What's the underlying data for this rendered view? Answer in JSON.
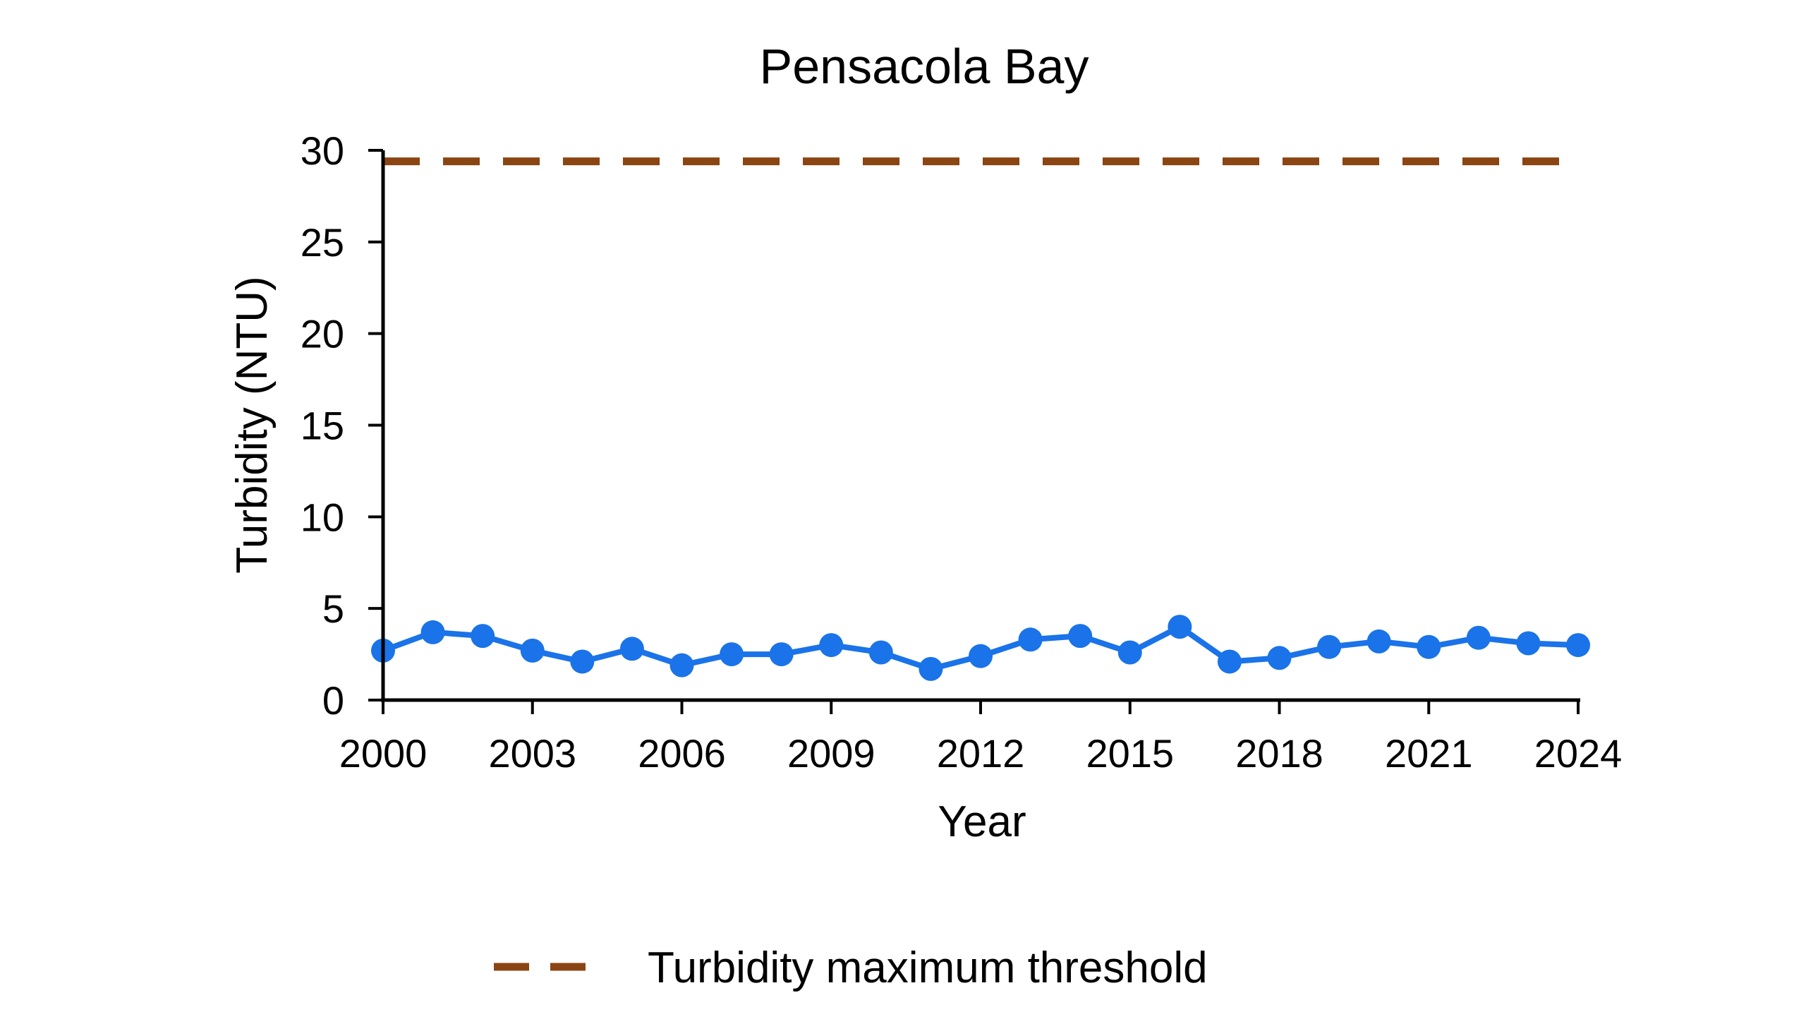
{
  "chart_data": {
    "type": "line",
    "title": "Pensacola Bay",
    "xlabel": "Year",
    "ylabel": "Turbidity (NTU)",
    "xlim": [
      2000,
      2024
    ],
    "ylim": [
      0,
      30
    ],
    "x_ticks": [
      "2000",
      "2003",
      "2006",
      "2009",
      "2012",
      "2015",
      "2018",
      "2021",
      "2024"
    ],
    "y_ticks": [
      "0",
      "5",
      "10",
      "15",
      "20",
      "25",
      "30"
    ],
    "grid": false,
    "legend_position": "bottom",
    "series": [
      {
        "color": "#1a73e8",
        "marker": "circle",
        "x": [
          2000,
          2001,
          2002,
          2003,
          2004,
          2005,
          2006,
          2007,
          2008,
          2009,
          2010,
          2011,
          2012,
          2013,
          2014,
          2015,
          2016,
          2017,
          2018,
          2019,
          2020,
          2021,
          2022,
          2023,
          2024
        ],
        "values": [
          2.7,
          3.7,
          3.5,
          2.7,
          2.1,
          2.8,
          1.9,
          2.5,
          2.5,
          3.0,
          2.6,
          1.7,
          2.4,
          3.3,
          3.5,
          2.6,
          4.0,
          2.1,
          2.3,
          2.9,
          3.2,
          2.9,
          3.4,
          3.1,
          3.0
        ]
      }
    ],
    "threshold": {
      "name": "Turbidity maximum threshold",
      "value": 29.4,
      "color": "#8b4513",
      "style": "dashed"
    }
  }
}
